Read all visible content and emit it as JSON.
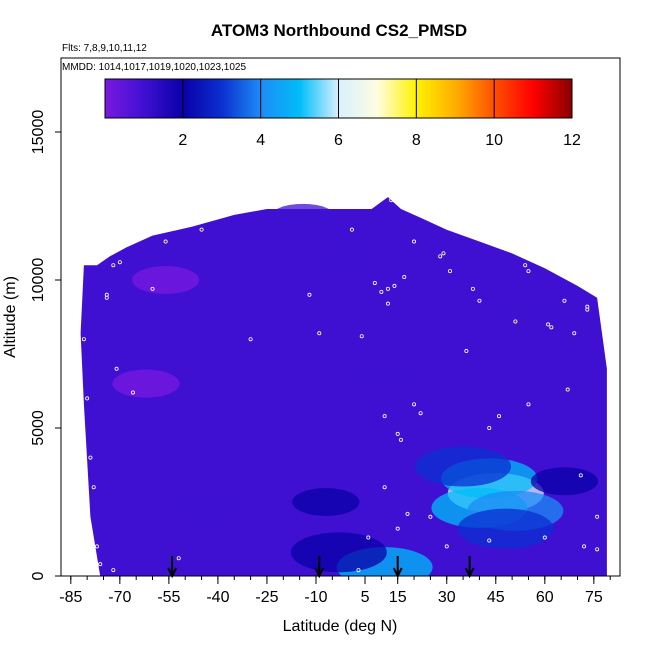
{
  "chart_data": {
    "type": "heatmap",
    "title": "ATOM3 Northbound CS2_PMSD",
    "flights_label": "Flts: 7,8,9,10,11,12",
    "dates_label": "MMDD: 1014,1017,1019,1020,1023,1025",
    "xlabel": "Latitude (deg N)",
    "ylabel": "Altitude (m)",
    "xlim": [
      -88,
      83
    ],
    "ylim": [
      0,
      17500
    ],
    "x_ticks": [
      -85,
      -70,
      -55,
      -40,
      -25,
      -10,
      5,
      15,
      30,
      45,
      60,
      75
    ],
    "x_tick_labels": [
      "-85",
      "-70",
      "-55",
      "-40",
      "-25",
      "-10",
      "5",
      "15",
      "30",
      "45",
      "60",
      "75"
    ],
    "x_minor_step": 5,
    "y_ticks": [
      0,
      5000,
      10000,
      15000
    ],
    "y_tick_labels": [
      "0",
      "5000",
      "10000",
      "15000"
    ],
    "colorbar": {
      "min": 0,
      "max": 12,
      "ticks": [
        2,
        4,
        6,
        8,
        10,
        12
      ],
      "tick_labels": [
        "2",
        "4",
        "6",
        "8",
        "10",
        "12"
      ],
      "palette": [
        "#7a18e0",
        "#3f10d2",
        "#0a00a8",
        "#0b2fd0",
        "#1c8cf6",
        "#00bdf8",
        "#d8f0ff",
        "#fffde0",
        "#fff200",
        "#ffae00",
        "#ff5000",
        "#ff0000",
        "#8a0000"
      ]
    },
    "profile_top": [
      [
        -81,
        10500
      ],
      [
        -77,
        10500
      ],
      [
        -73,
        10800
      ],
      [
        -68,
        11100
      ],
      [
        -60,
        11500
      ],
      [
        -48,
        11800
      ],
      [
        -35,
        12200
      ],
      [
        -25,
        12400
      ],
      [
        7,
        12400
      ],
      [
        12,
        12800
      ],
      [
        16,
        12400
      ],
      [
        22,
        12100
      ],
      [
        30,
        11700
      ],
      [
        40,
        11300
      ],
      [
        50,
        10900
      ],
      [
        60,
        10400
      ],
      [
        70,
        9800
      ],
      [
        76,
        9400
      ],
      [
        79,
        7000
      ],
      [
        79,
        0
      ]
    ],
    "profile_bottom": [
      [
        79,
        0
      ],
      [
        -76,
        0
      ],
      [
        -79,
        2000
      ],
      [
        -81,
        5800
      ],
      [
        -82,
        8200
      ],
      [
        -81,
        10500
      ]
    ],
    "anomalies": [
      {
        "lat": -62,
        "alt": 6500,
        "value": 0.3
      },
      {
        "lat": -44,
        "alt": 2300,
        "value": 0.5
      },
      {
        "lat": -56,
        "alt": 10000,
        "value": 0.4
      },
      {
        "lat": 1,
        "alt": 10800,
        "value": 0.6
      },
      {
        "lat": 55,
        "alt": 9000,
        "value": 0.5
      },
      {
        "lat": -14,
        "alt": 12100,
        "value": 0.6
      },
      {
        "lat": 11,
        "alt": 6800,
        "value": 0.5
      },
      {
        "lat": 45,
        "alt": 2800,
        "value": 6.2
      },
      {
        "lat": 43,
        "alt": 3300,
        "value": 4.8
      },
      {
        "lat": 40,
        "alt": 2300,
        "value": 4.5
      },
      {
        "lat": 51,
        "alt": 2200,
        "value": 4.2
      },
      {
        "lat": 35,
        "alt": 3700,
        "value": 3.4
      },
      {
        "lat": 48,
        "alt": 1600,
        "value": 3.0
      },
      {
        "lat": 11,
        "alt": 300,
        "value": 4.6
      },
      {
        "lat": -7,
        "alt": 2500,
        "value": 2.0
      },
      {
        "lat": -3,
        "alt": 800,
        "value": 2.3
      },
      {
        "lat": 66,
        "alt": 3200,
        "value": 1.6
      }
    ],
    "samples": [
      [
        -81,
        8000
      ],
      [
        -80,
        6000
      ],
      [
        -79,
        4000
      ],
      [
        -78,
        3000
      ],
      [
        -77,
        1000
      ],
      [
        -76,
        400
      ],
      [
        -74,
        9500
      ],
      [
        -72,
        10500
      ],
      [
        -71,
        7000
      ],
      [
        -70,
        10600
      ],
      [
        -66,
        6200
      ],
      [
        -60,
        9700
      ],
      [
        -56,
        11300
      ],
      [
        -52,
        600
      ],
      [
        -45,
        11700
      ],
      [
        -30,
        8000
      ],
      [
        -12,
        9500
      ],
      [
        -9,
        8200
      ],
      [
        1,
        11700
      ],
      [
        4,
        8100
      ],
      [
        8,
        9900
      ],
      [
        10,
        9600
      ],
      [
        11,
        5400
      ],
      [
        11,
        3000
      ],
      [
        12,
        9700
      ],
      [
        12,
        9200
      ],
      [
        14,
        9800
      ],
      [
        15,
        4800
      ],
      [
        16,
        4600
      ],
      [
        17,
        10100
      ],
      [
        20,
        5800
      ],
      [
        22,
        5500
      ],
      [
        25,
        2000
      ],
      [
        28,
        10800
      ],
      [
        29,
        10900
      ],
      [
        31,
        10300
      ],
      [
        35,
        12100
      ],
      [
        36,
        7600
      ],
      [
        38,
        9700
      ],
      [
        40,
        9300
      ],
      [
        41,
        11800
      ],
      [
        43,
        5000
      ],
      [
        46,
        5400
      ],
      [
        51,
        8600
      ],
      [
        54,
        10500
      ],
      [
        55,
        10300
      ],
      [
        55,
        5800
      ],
      [
        61,
        8500
      ],
      [
        62,
        8400
      ],
      [
        66,
        9300
      ],
      [
        67,
        6300
      ],
      [
        69,
        8200
      ],
      [
        71,
        3400
      ],
      [
        73,
        9100
      ],
      [
        73,
        9000
      ],
      [
        76,
        2000
      ],
      [
        76,
        900
      ],
      [
        6,
        1300
      ],
      [
        15,
        1600
      ],
      [
        30,
        1000
      ],
      [
        43,
        1200
      ],
      [
        60,
        1300
      ],
      [
        72,
        1000
      ],
      [
        18,
        2100
      ],
      [
        -74,
        9400
      ],
      [
        -83,
        1200
      ],
      [
        -72,
        200
      ],
      [
        3,
        200
      ],
      [
        13,
        12700
      ],
      [
        20,
        11300
      ]
    ],
    "arrows_lat": [
      -54,
      -9,
      15,
      37
    ]
  }
}
